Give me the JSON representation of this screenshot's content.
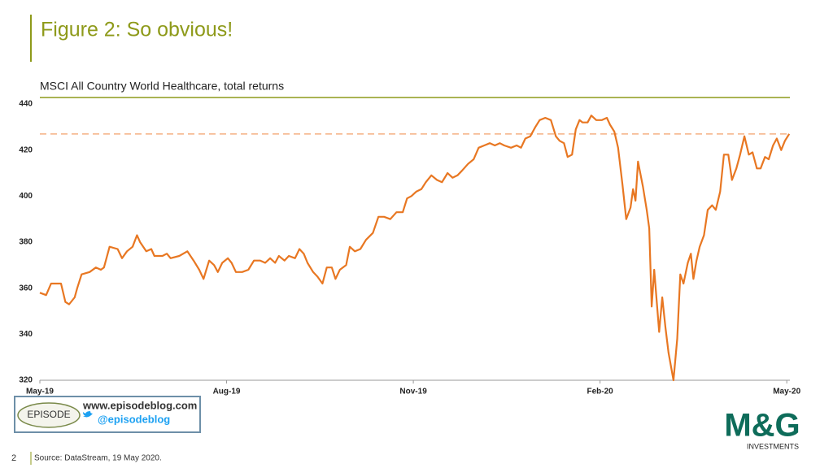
{
  "slide_title": "Figure 2: So obvious!",
  "page_number": "2",
  "source": "Source: DataStream, 19 May 2020.",
  "badge": {
    "name": "EPISODE",
    "url": "www.episodeblog.com",
    "handle": "@episodeblog"
  },
  "brand": {
    "name": "M&G",
    "tagline": "INVESTMENTS"
  },
  "chart_data": {
    "type": "line",
    "title": "MSCI All Country World Healthcare, total returns",
    "color": "#e87722",
    "x": [
      0,
      0.1,
      0.18,
      0.27,
      0.34,
      0.41,
      0.47,
      0.56,
      0.6,
      0.67,
      0.8,
      0.9,
      0.98,
      1.03,
      1.12,
      1.25,
      1.32,
      1.4,
      1.49,
      1.56,
      1.61,
      1.71,
      1.79,
      1.84,
      1.97,
      2.04,
      2.1,
      2.24,
      2.37,
      2.47,
      2.56,
      2.63,
      2.72,
      2.8,
      2.86,
      2.93,
      3.02,
      3.08,
      3.15,
      3.25,
      3.35,
      3.44,
      3.54,
      3.62,
      3.7,
      3.78,
      3.84,
      3.93,
      4.0,
      4.1,
      4.17,
      4.24,
      4.3,
      4.39,
      4.46,
      4.54,
      4.61,
      4.69,
      4.75,
      4.82,
      4.92,
      4.98,
      5.06,
      5.15,
      5.24,
      5.35,
      5.44,
      5.53,
      5.63,
      5.73,
      5.83,
      5.9,
      5.97,
      6.05,
      6.13,
      6.2,
      6.29,
      6.38,
      6.46,
      6.55,
      6.63,
      6.71,
      6.78,
      6.88,
      6.97,
      7.05,
      7.14,
      7.23,
      7.31,
      7.39,
      7.46,
      7.57,
      7.66,
      7.73,
      7.8,
      7.88,
      7.96,
      8.03,
      8.12,
      8.21,
      8.29,
      8.35,
      8.42,
      8.48,
      8.55,
      8.61,
      8.67,
      8.72,
      8.8,
      8.86,
      8.94,
      9.03,
      9.11,
      9.16,
      9.23,
      9.29,
      9.36,
      9.42,
      9.49,
      9.53,
      9.57,
      9.61,
      9.69,
      9.75,
      9.79,
      9.83,
      9.87,
      9.95,
      10.0,
      10.05,
      10.1,
      10.18,
      10.24,
      10.29,
      10.34,
      10.41,
      10.46,
      10.5,
      10.55,
      10.6,
      10.67,
      10.73,
      10.8,
      10.86,
      10.93,
      10.99,
      11.06,
      11.12,
      11.19,
      11.25,
      11.32,
      11.39,
      11.45,
      11.52,
      11.58,
      11.65,
      11.71,
      11.78,
      11.84,
      11.91,
      11.97,
      12.04
    ],
    "values": [
      358,
      357,
      362,
      362,
      362,
      354,
      353,
      356,
      360,
      366,
      367,
      369,
      368,
      369,
      378,
      377,
      373,
      376,
      378,
      383,
      380,
      376,
      377,
      374,
      374,
      375,
      373,
      374,
      376,
      372,
      368,
      364,
      372,
      370,
      367,
      371,
      373,
      371,
      367,
      367,
      368,
      372,
      372,
      371,
      373,
      371,
      374,
      372,
      374,
      373,
      377,
      375,
      371,
      367,
      365,
      362,
      369,
      369,
      364,
      368,
      370,
      378,
      376,
      377,
      381,
      384,
      391,
      391,
      390,
      393,
      393,
      399,
      400,
      402,
      403,
      406,
      409,
      407,
      406,
      410,
      408,
      409,
      411,
      414,
      416,
      421,
      422,
      423,
      422,
      423,
      422,
      421,
      422,
      421,
      425,
      426,
      430,
      433,
      434,
      433,
      426,
      424,
      423,
      417,
      418,
      429,
      433,
      432,
      432,
      435,
      433,
      433,
      434,
      431,
      428,
      421,
      405,
      390,
      395,
      403,
      398,
      415,
      404,
      394,
      386,
      352,
      368,
      341,
      356,
      343,
      332,
      320,
      338,
      366,
      362,
      371,
      375,
      364,
      372,
      378,
      383,
      394,
      396,
      394,
      402,
      418,
      418,
      407,
      412,
      418,
      426,
      418,
      419,
      412,
      412,
      417,
      416,
      422,
      425,
      420,
      424,
      427
    ],
    "reference_line": {
      "value": 427,
      "color": "#f5b183"
    },
    "xlim": [
      0,
      12.05
    ],
    "xticks": [
      {
        "value": 0,
        "label": "May-19"
      },
      {
        "value": 3,
        "label": "Aug-19"
      },
      {
        "value": 6,
        "label": "Nov-19"
      },
      {
        "value": 9,
        "label": "Feb-20"
      },
      {
        "value": 12,
        "label": "May-20"
      }
    ],
    "ylim": [
      320,
      440
    ],
    "yticks": [
      320,
      340,
      360,
      380,
      400,
      420,
      440
    ],
    "grid": false
  }
}
